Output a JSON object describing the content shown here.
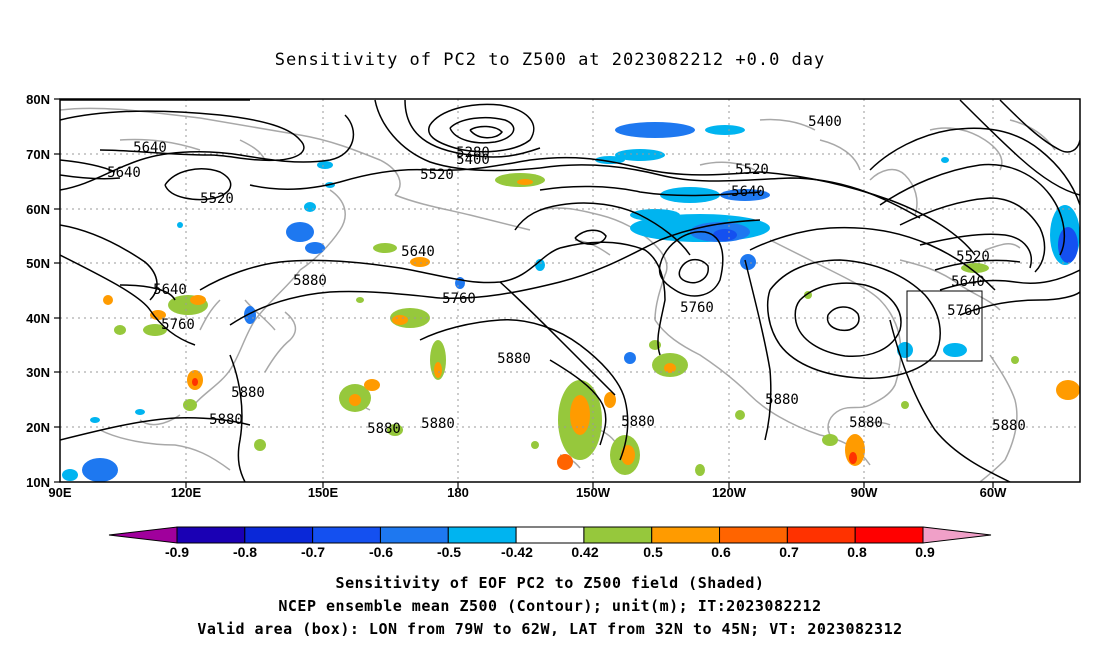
{
  "title": "Sensitivity of PC2 to Z500 at 2023082212 +0.0 day",
  "lat_labels": [
    "80N",
    "70N",
    "60N",
    "50N",
    "40N",
    "30N",
    "20N",
    "10N"
  ],
  "lon_labels": [
    "90E",
    "120E",
    "150E",
    "180",
    "150W",
    "120W",
    "90W",
    "60W"
  ],
  "contour_labels": [
    "5640",
    "5640",
    "5520",
    "5280",
    "5400",
    "5520",
    "5400",
    "5520",
    "5640",
    "5640",
    "5520",
    "5640",
    "5760",
    "5640",
    "5760",
    "5880",
    "5760",
    "5760",
    "5880",
    "5880",
    "5880",
    "5880",
    "5880",
    "5880",
    "5880",
    "5880",
    "5880"
  ],
  "colorbar": {
    "labels": [
      "-0.9",
      "-0.8",
      "-0.7",
      "-0.6",
      "-0.5",
      "-0.42",
      "0.42",
      "0.5",
      "0.6",
      "0.7",
      "0.8",
      "0.9"
    ],
    "colors": [
      "#a0009c",
      "#1a00b4",
      "#0a28d8",
      "#1450f0",
      "#1e78f0",
      "#00b4f0",
      "#ffffff",
      "#96c83c",
      "#ff9b00",
      "#ff6400",
      "#ff3200",
      "#ff0000",
      "#f0a0c8"
    ]
  },
  "valid_box": {
    "lon_from": "79W",
    "lon_to": "62W",
    "lat_from": "32N",
    "lat_to": "45N"
  },
  "captions": {
    "line1": "Sensitivity of EOF PC2 to Z500 field (Shaded)",
    "line2": "NCEP ensemble mean Z500 (Contour); unit(m); IT:2023082212",
    "line3": "Valid area (box): LON from 79W to 62W, LAT from 32N to 45N; VT: 2023082312"
  }
}
